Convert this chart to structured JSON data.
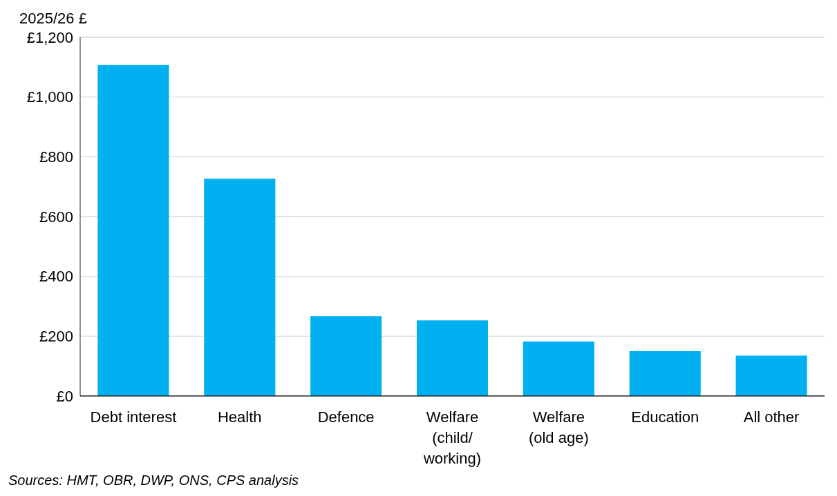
{
  "chart_data": {
    "type": "bar",
    "ylabel": "2025/26 £",
    "categories": [
      "Debt interest",
      "Health",
      "Defence",
      "Welfare (child/working)",
      "Welfare (old age)",
      "Education",
      "All other"
    ],
    "values": [
      1108,
      727,
      267,
      253,
      182,
      150,
      135
    ],
    "color": "#00b0f0",
    "ylim": [
      0,
      1200
    ],
    "yticks": [
      {
        "value": 0,
        "label": "£0"
      },
      {
        "value": 200,
        "label": "£200"
      },
      {
        "value": 400,
        "label": "£400"
      },
      {
        "value": 600,
        "label": "£600"
      },
      {
        "value": 800,
        "label": "£800"
      },
      {
        "value": 1000,
        "label": "£1,000"
      },
      {
        "value": 1200,
        "label": "£1,200"
      }
    ],
    "grid": "y",
    "annotations": [
      "Sources: HMT, OBR, DWP, ONS, CPS analysis"
    ]
  }
}
